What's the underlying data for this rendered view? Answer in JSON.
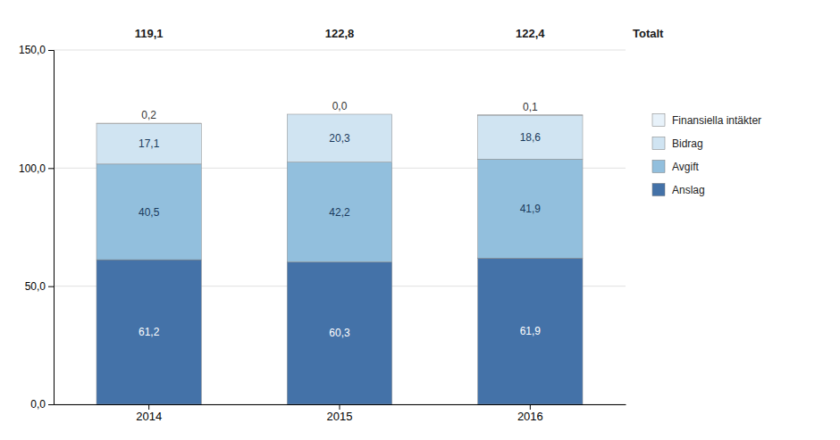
{
  "chart_data": {
    "type": "bar",
    "stacked": true,
    "data_labels": true,
    "grid": true,
    "legend": "right",
    "categories": [
      "2014",
      "2015",
      "2016"
    ],
    "series": [
      {
        "name": "Anslag",
        "color": "#4472A8",
        "values": [
          61.2,
          60.3,
          61.9
        ],
        "value_labels": [
          "61,2",
          "60,3",
          "61,9"
        ]
      },
      {
        "name": "Avgift",
        "color": "#92BFDD",
        "values": [
          40.5,
          42.2,
          41.9
        ],
        "value_labels": [
          "40,5",
          "42,2",
          "41,9"
        ]
      },
      {
        "name": "Bidrag",
        "color": "#D0E4F2",
        "values": [
          17.1,
          20.3,
          18.6
        ],
        "value_labels": [
          "17,1",
          "20,3",
          "18,6"
        ]
      },
      {
        "name": "Finansiella intäkter",
        "color": "#E8F2FA",
        "values": [
          0.2,
          0.0,
          0.1
        ],
        "value_labels": [
          "0,2",
          "0,0",
          "0,1"
        ]
      }
    ],
    "ylim": [
      0,
      150
    ],
    "yticks": [
      {
        "value": 0,
        "label": "0,0"
      },
      {
        "value": 50.0,
        "label": "50,0"
      },
      {
        "value": 100.0,
        "label": "100,0"
      },
      {
        "value": 150.0,
        "label": "150,0"
      }
    ],
    "annotations": [
      {
        "text": "119,1",
        "category": "2014"
      },
      {
        "text": "122,8",
        "category": "2015"
      },
      {
        "text": "122,4",
        "category": "2016"
      },
      {
        "text": "Totalt"
      }
    ]
  }
}
